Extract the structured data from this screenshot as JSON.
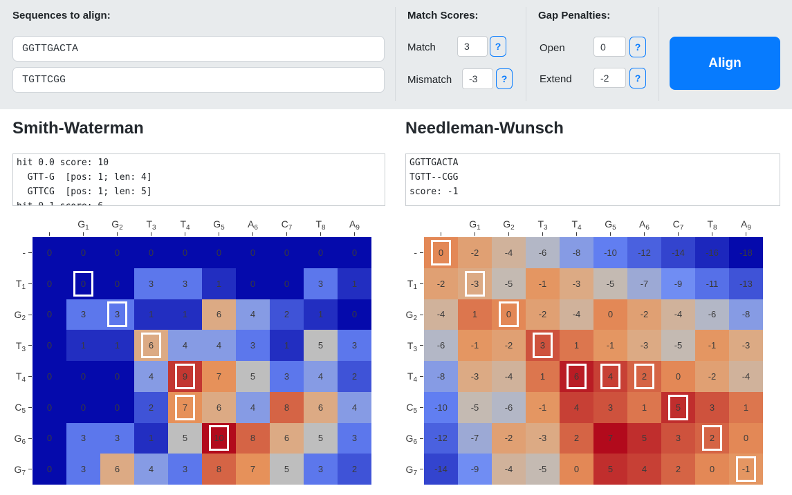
{
  "colors": {
    "accent_blue": "#077bfe",
    "topbar_bg": "#e8ebed",
    "cell_text": "#3b3b3b"
  },
  "topbar": {
    "sequences_label": "Sequences to align:",
    "sequence1": "GGTTGACTA",
    "sequence2": "TGTTCGG",
    "match_scores_label": "Match Scores:",
    "match_label": "Match",
    "match_value": "3",
    "mismatch_label": "Mismatch",
    "mismatch_value": "-3",
    "gap_penalties_label": "Gap Penalties:",
    "open_label": "Open",
    "open_value": "0",
    "extend_label": "Extend",
    "extend_value": "-2",
    "help_button_label": "?",
    "align_button_label": "Align"
  },
  "chart_data": [
    {
      "id": "smith-waterman",
      "type": "heatmap",
      "title": "Smith-Waterman",
      "output_text": "hit 0.0 score: 10\n  GTT-G  [pos: 1; len: 4]\n  GTTCG  [pos: 1; len: 5]\nhit 0.1 score: 6",
      "x_labels": [
        "",
        "G1",
        "G2",
        "T3",
        "T4",
        "G5",
        "A6",
        "C7",
        "T8",
        "A9"
      ],
      "y_labels": [
        "-",
        "T1",
        "G2",
        "T3",
        "T4",
        "C5",
        "G6",
        "G7"
      ],
      "z": [
        [
          0,
          0,
          0,
          0,
          0,
          0,
          0,
          0,
          0,
          0
        ],
        [
          0,
          0,
          0,
          3,
          3,
          1,
          0,
          0,
          3,
          1
        ],
        [
          0,
          3,
          3,
          1,
          1,
          6,
          4,
          2,
          1,
          0
        ],
        [
          0,
          1,
          1,
          6,
          4,
          4,
          3,
          1,
          5,
          3
        ],
        [
          0,
          0,
          0,
          4,
          9,
          7,
          5,
          3,
          4,
          2
        ],
        [
          0,
          0,
          0,
          2,
          7,
          6,
          4,
          8,
          6,
          4
        ],
        [
          0,
          3,
          3,
          1,
          5,
          10,
          8,
          6,
          5,
          3
        ],
        [
          0,
          3,
          6,
          4,
          3,
          8,
          7,
          5,
          3,
          2
        ]
      ],
      "zmin": 0,
      "zmax": 10,
      "colorscale": [
        [
          0.0,
          [
            5,
            10,
            172
          ]
        ],
        [
          0.35,
          [
            106,
            137,
            247
          ]
        ],
        [
          0.5,
          [
            190,
            190,
            190
          ]
        ],
        [
          0.6,
          [
            220,
            170,
            132
          ]
        ],
        [
          0.7,
          [
            230,
            145,
            90
          ]
        ],
        [
          1.0,
          [
            178,
            10,
            28
          ]
        ]
      ],
      "traceback_cells": [
        [
          1,
          1
        ],
        [
          2,
          2
        ],
        [
          3,
          3
        ],
        [
          4,
          4
        ],
        [
          5,
          4
        ],
        [
          6,
          5
        ]
      ]
    },
    {
      "id": "needleman-wunsch",
      "type": "heatmap",
      "title": "Needleman-Wunsch",
      "output_text": "GGTTGACTA\nTGTT--CGG\nscore: -1",
      "x_labels": [
        "",
        "G1",
        "G2",
        "T3",
        "T4",
        "G5",
        "A6",
        "C7",
        "T8",
        "A9"
      ],
      "y_labels": [
        "-",
        "T1",
        "G2",
        "T3",
        "T4",
        "C5",
        "G6",
        "G7"
      ],
      "z": [
        [
          0,
          -2,
          -4,
          -6,
          -8,
          -10,
          -12,
          -14,
          -16,
          -18
        ],
        [
          -2,
          -3,
          -5,
          -1,
          -3,
          -5,
          -7,
          -9,
          -11,
          -13
        ],
        [
          -4,
          1,
          0,
          -2,
          -4,
          0,
          -2,
          -4,
          -6,
          -8
        ],
        [
          -6,
          -1,
          -2,
          3,
          1,
          -1,
          -3,
          -5,
          -1,
          -3
        ],
        [
          -8,
          -3,
          -4,
          1,
          6,
          4,
          2,
          0,
          -2,
          -4
        ],
        [
          -10,
          -5,
          -6,
          -1,
          4,
          3,
          1,
          5,
          3,
          1
        ],
        [
          -12,
          -7,
          -2,
          -3,
          2,
          7,
          5,
          3,
          2,
          0
        ],
        [
          -14,
          -9,
          -4,
          -5,
          0,
          5,
          4,
          2,
          0,
          -1
        ]
      ],
      "zmin": -18,
      "zmax": 7,
      "colorscale": [
        [
          0.0,
          [
            5,
            10,
            172
          ]
        ],
        [
          0.35,
          [
            106,
            137,
            247
          ]
        ],
        [
          0.5,
          [
            190,
            190,
            190
          ]
        ],
        [
          0.6,
          [
            220,
            170,
            132
          ]
        ],
        [
          0.7,
          [
            230,
            145,
            90
          ]
        ],
        [
          1.0,
          [
            178,
            10,
            28
          ]
        ]
      ],
      "traceback_cells": [
        [
          0,
          0
        ],
        [
          1,
          1
        ],
        [
          2,
          2
        ],
        [
          3,
          3
        ],
        [
          4,
          4
        ],
        [
          4,
          5
        ],
        [
          4,
          6
        ],
        [
          5,
          7
        ],
        [
          6,
          8
        ],
        [
          7,
          9
        ]
      ]
    }
  ]
}
